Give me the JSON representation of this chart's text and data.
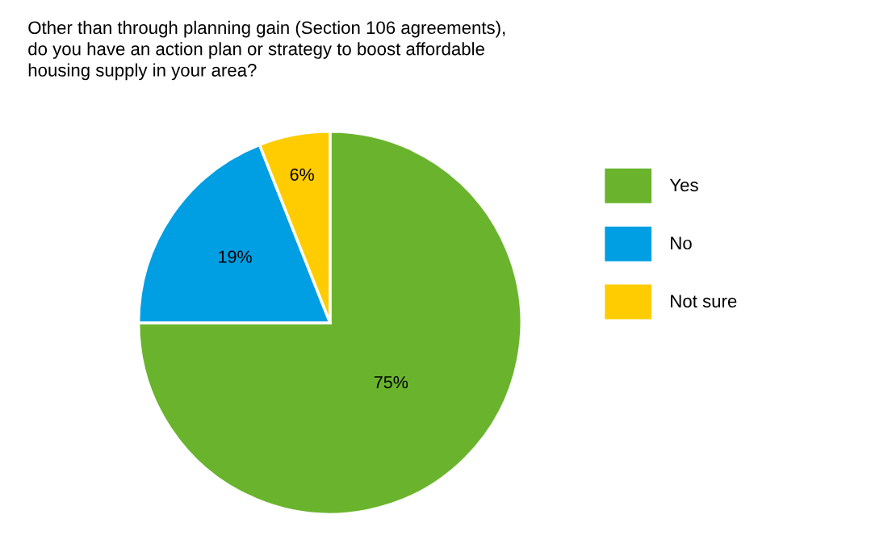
{
  "chart_data": {
    "type": "pie",
    "title": "Other than through planning gain (Section 106 agreements),\ndo you have an action plan or strategy to boost affordable\nhousing supply in your area?",
    "categories": [
      "Yes",
      "No",
      "Not sure"
    ],
    "values": [
      75,
      19,
      6
    ],
    "colors": [
      "#6ab42d",
      "#009fe3",
      "#fecc00"
    ],
    "value_labels": [
      "75%",
      "19%",
      "6%"
    ],
    "legend": "right"
  }
}
